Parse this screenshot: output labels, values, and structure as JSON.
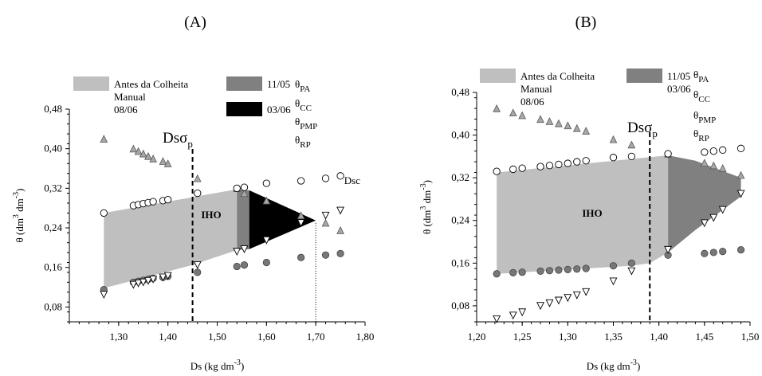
{
  "chart_data": [
    {
      "type": "scatter",
      "panel_label": "(A)",
      "xlabel": "Ds (kg dm",
      "xlabel_sup": "-3",
      "xlabel_end": ")",
      "ylabel": "θ (dm",
      "ylabel_sup1": "3",
      "ylabel_mid": " dm",
      "ylabel_sup2": "-3",
      "ylabel_end": ")",
      "xlim": [
        1.2,
        1.8
      ],
      "ylim": [
        0.05,
        0.48
      ],
      "xticks": [
        1.3,
        1.4,
        1.5,
        1.6,
        1.7,
        1.8
      ],
      "xtick_labels": [
        "1,30",
        "1,40",
        "1,50",
        "1,60",
        "1,70",
        "1,80"
      ],
      "yticks": [
        0.08,
        0.16,
        0.24,
        0.32,
        0.4,
        0.48
      ],
      "ytick_labels": [
        "0,08",
        "0,16",
        "0,24",
        "0,32",
        "0,40",
        "0,48"
      ],
      "legend": {
        "items": [
          {
            "label_lines": [
              "Antes da Colheita",
              "Manual",
              "08/06"
            ],
            "color": "#bfbfbf"
          },
          {
            "label_lines": [
              "11/05"
            ],
            "color": "#808080"
          },
          {
            "label_lines": [
              "03/06"
            ],
            "color": "#000000"
          }
        ],
        "theta_labels": [
          {
            "main": "θ",
            "sub": "PA"
          },
          {
            "main": "θ",
            "sub": "CC"
          },
          {
            "main": "θ",
            "sub": "PMP"
          },
          {
            "main": "θ",
            "sub": "RP"
          }
        ]
      },
      "annotations": {
        "iho": "IHO",
        "dsc": "Dsc",
        "dssp_main": "Dsσ",
        "dssp_sub": "p",
        "dssp_x": 1.45,
        "dsc_x": 1.7
      },
      "regions": [
        {
          "color": "#bfbfbf",
          "polygon": [
            [
              1.27,
              0.27
            ],
            [
              1.54,
              0.318
            ],
            [
              1.54,
              0.195
            ],
            [
              1.45,
              0.165
            ],
            [
              1.27,
              0.118
            ]
          ]
        },
        {
          "color": "#808080",
          "polygon": [
            [
              1.54,
              0.318
            ],
            [
              1.565,
              0.316
            ],
            [
              1.565,
              0.197
            ],
            [
              1.54,
              0.195
            ]
          ]
        },
        {
          "color": "#000000",
          "polygon": [
            [
              1.565,
              0.316
            ],
            [
              1.7,
              0.255
            ],
            [
              1.565,
              0.197
            ]
          ]
        }
      ],
      "series": {
        "theta_PA": {
          "x": [
            1.27,
            1.33,
            1.34,
            1.35,
            1.36,
            1.37,
            1.39,
            1.4,
            1.46,
            1.54,
            1.555,
            1.6,
            1.67,
            1.72,
            1.75
          ],
          "y": [
            0.42,
            0.4,
            0.395,
            0.39,
            0.385,
            0.38,
            0.375,
            0.37,
            0.34,
            0.32,
            0.31,
            0.295,
            0.265,
            0.25,
            0.235
          ]
        },
        "theta_CC": {
          "x": [
            1.27,
            1.33,
            1.34,
            1.35,
            1.36,
            1.37,
            1.39,
            1.4,
            1.46,
            1.54,
            1.555,
            1.6,
            1.67,
            1.72,
            1.75
          ],
          "y": [
            0.27,
            0.285,
            0.287,
            0.289,
            0.291,
            0.293,
            0.295,
            0.297,
            0.31,
            0.32,
            0.322,
            0.33,
            0.335,
            0.34,
            0.345
          ]
        },
        "theta_PMP": {
          "x": [
            1.27,
            1.33,
            1.34,
            1.35,
            1.36,
            1.37,
            1.39,
            1.4,
            1.46,
            1.54,
            1.555,
            1.6,
            1.67,
            1.72,
            1.75
          ],
          "y": [
            0.115,
            0.13,
            0.132,
            0.134,
            0.136,
            0.138,
            0.14,
            0.142,
            0.15,
            0.162,
            0.165,
            0.17,
            0.18,
            0.185,
            0.188
          ]
        },
        "theta_RP": {
          "x": [
            1.27,
            1.33,
            1.34,
            1.35,
            1.36,
            1.37,
            1.39,
            1.4,
            1.46,
            1.54,
            1.555,
            1.6,
            1.67,
            1.72,
            1.75
          ],
          "y": [
            0.105,
            0.125,
            0.128,
            0.13,
            0.133,
            0.136,
            0.14,
            0.143,
            0.165,
            0.192,
            0.197,
            0.215,
            0.25,
            0.265,
            0.275
          ]
        }
      }
    },
    {
      "type": "scatter",
      "panel_label": "(B)",
      "xlabel": "Ds (kg dm",
      "xlabel_sup": "-3",
      "xlabel_end": ")",
      "ylabel": "θ (dm",
      "ylabel_sup1": "3",
      "ylabel_mid": " dm",
      "ylabel_sup2": "-3",
      "ylabel_end": ")",
      "xlim": [
        1.2,
        1.5
      ],
      "ylim": [
        0.05,
        0.48
      ],
      "xticks": [
        1.2,
        1.25,
        1.3,
        1.35,
        1.4,
        1.45,
        1.5
      ],
      "xtick_labels": [
        "1,20",
        "1,25",
        "1,30",
        "1,35",
        "1,40",
        "1,45",
        "1,50"
      ],
      "yticks": [
        0.08,
        0.16,
        0.24,
        0.32,
        0.4,
        0.48
      ],
      "ytick_labels": [
        "0,08",
        "0,16",
        "0,24",
        "0,32",
        "0,40",
        "0,48"
      ],
      "legend": {
        "items": [
          {
            "label_lines": [
              "Antes da Colheita",
              "Manual",
              "08/06"
            ],
            "color": "#bfbfbf"
          },
          {
            "label_lines": [
              "11/05",
              "03/06"
            ],
            "color": "#808080"
          }
        ],
        "theta_labels": [
          {
            "main": "θ",
            "sub": "PA"
          },
          {
            "main": "θ",
            "sub": "CC"
          },
          {
            "main": "θ",
            "sub": "PMP"
          },
          {
            "main": "θ",
            "sub": "RP"
          }
        ]
      },
      "annotations": {
        "iho": "IHO",
        "dssp_main": "Dsσ",
        "dssp_sub": "p",
        "dssp_x": 1.39
      },
      "regions": [
        {
          "color": "#bfbfbf",
          "polygon": [
            [
              1.222,
              0.33
            ],
            [
              1.41,
              0.362
            ],
            [
              1.41,
              0.18
            ],
            [
              1.39,
              0.16
            ],
            [
              1.37,
              0.155
            ],
            [
              1.222,
              0.14
            ]
          ]
        },
        {
          "color": "#808080",
          "polygon": [
            [
              1.41,
              0.362
            ],
            [
              1.44,
              0.352
            ],
            [
              1.49,
              0.32
            ],
            [
              1.49,
              0.285
            ],
            [
              1.44,
              0.222
            ],
            [
              1.41,
              0.18
            ]
          ]
        }
      ],
      "series": {
        "theta_PA": {
          "x": [
            1.222,
            1.24,
            1.25,
            1.27,
            1.28,
            1.29,
            1.3,
            1.31,
            1.32,
            1.35,
            1.37,
            1.41,
            1.45,
            1.46,
            1.47,
            1.49
          ],
          "y": [
            0.45,
            0.442,
            0.437,
            0.43,
            0.426,
            0.422,
            0.418,
            0.413,
            0.408,
            0.392,
            0.382,
            0.365,
            0.348,
            0.343,
            0.338,
            0.325
          ]
        },
        "theta_CC": {
          "x": [
            1.222,
            1.24,
            1.25,
            1.27,
            1.28,
            1.29,
            1.3,
            1.31,
            1.32,
            1.35,
            1.37,
            1.41,
            1.45,
            1.46,
            1.47,
            1.49
          ],
          "y": [
            0.332,
            0.336,
            0.338,
            0.341,
            0.343,
            0.345,
            0.347,
            0.35,
            0.352,
            0.358,
            0.36,
            0.365,
            0.368,
            0.37,
            0.372,
            0.375
          ]
        },
        "theta_PMP": {
          "x": [
            1.222,
            1.24,
            1.25,
            1.27,
            1.28,
            1.29,
            1.3,
            1.31,
            1.32,
            1.35,
            1.37,
            1.41,
            1.45,
            1.46,
            1.47,
            1.49
          ],
          "y": [
            0.14,
            0.142,
            0.143,
            0.145,
            0.146,
            0.147,
            0.148,
            0.149,
            0.15,
            0.155,
            0.16,
            0.175,
            0.178,
            0.18,
            0.182,
            0.185
          ]
        },
        "theta_RP": {
          "x": [
            1.222,
            1.24,
            1.25,
            1.27,
            1.28,
            1.29,
            1.3,
            1.31,
            1.32,
            1.35,
            1.37,
            1.41,
            1.45,
            1.46,
            1.47,
            1.49
          ],
          "y": [
            0.055,
            0.062,
            0.068,
            0.08,
            0.085,
            0.09,
            0.095,
            0.1,
            0.106,
            0.126,
            0.145,
            0.185,
            0.235,
            0.245,
            0.26,
            0.29
          ]
        }
      }
    }
  ]
}
